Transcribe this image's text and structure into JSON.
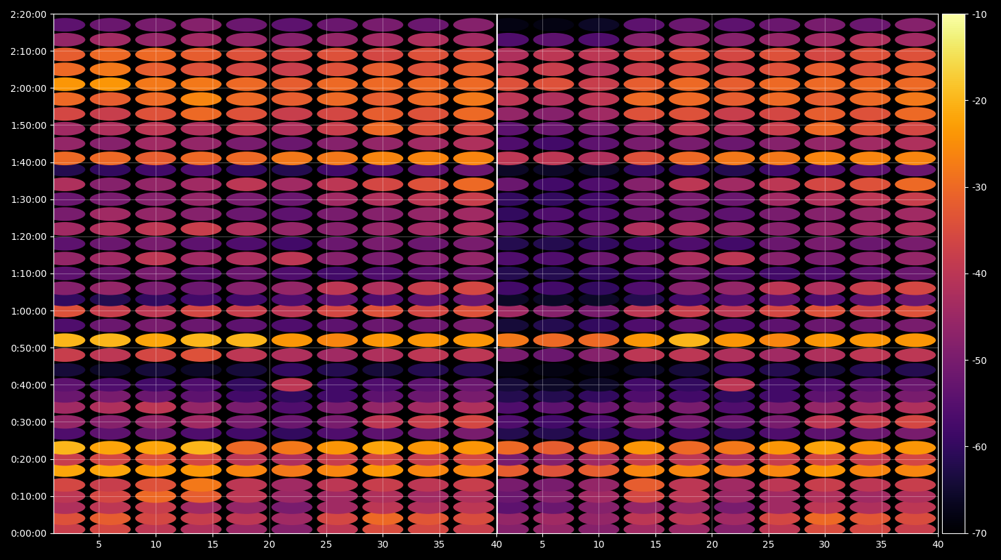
{
  "chart_data": {
    "type": "heatmap",
    "x": [
      2,
      6,
      10,
      14,
      18,
      22,
      26,
      30,
      34,
      38
    ],
    "y": [
      60,
      240,
      420,
      600,
      780,
      1020,
      1200,
      1380,
      1620,
      1800,
      2040,
      2220,
      2400,
      2640,
      2880,
      3120,
      3360,
      3600,
      3780,
      3960,
      4200,
      4440,
      4680,
      4920,
      5160,
      5400,
      5640,
      5880,
      6060,
      6300,
      6540,
      6780,
      7020,
      7260,
      7500,
      7740,
      7980,
      8220
    ],
    "xlim": [
      1,
      40
    ],
    "xticks": [
      5,
      10,
      15,
      20,
      25,
      30,
      35,
      40
    ],
    "ylim": [
      0,
      8400
    ],
    "yticks": [
      {
        "value": 0,
        "label": "0:00:00"
      },
      {
        "value": 600,
        "label": "0:10:00"
      },
      {
        "value": 1200,
        "label": "0:20:00"
      },
      {
        "value": 1800,
        "label": "0:30:00"
      },
      {
        "value": 2400,
        "label": "0:40:00"
      },
      {
        "value": 3000,
        "label": "0:50:00"
      },
      {
        "value": 3600,
        "label": "1:00:00"
      },
      {
        "value": 4200,
        "label": "1:10:00"
      },
      {
        "value": 4800,
        "label": "1:20:00"
      },
      {
        "value": 5400,
        "label": "1:30:00"
      },
      {
        "value": 6000,
        "label": "1:40:00"
      },
      {
        "value": 6600,
        "label": "1:50:00"
      },
      {
        "value": 7200,
        "label": "2:00:00"
      },
      {
        "value": 7800,
        "label": "2:10:00"
      },
      {
        "value": 8400,
        "label": "2:20:00"
      }
    ],
    "grid": true,
    "colorbar": {
      "range": [
        -70,
        -10
      ],
      "ticks": [
        -10,
        -20,
        -30,
        -40,
        -50,
        -60,
        -70
      ]
    },
    "panels": [
      {
        "values": [
          [
            -38,
            -36,
            -40,
            -42,
            -45,
            -48,
            -40,
            -35,
            -36,
            -38
          ],
          [
            -34,
            -32,
            -36,
            -38,
            -40,
            -44,
            -36,
            -30,
            -33,
            -35
          ],
          [
            -42,
            -40,
            -38,
            -44,
            -46,
            -50,
            -44,
            -40,
            -42,
            -40
          ],
          [
            -40,
            -36,
            -30,
            -32,
            -40,
            -45,
            -44,
            -42,
            -44,
            -42
          ],
          [
            -36,
            -38,
            -34,
            -28,
            -40,
            -44,
            -40,
            -38,
            -40,
            -38
          ],
          [
            -22,
            -22,
            -24,
            -24,
            -26,
            -28,
            -26,
            -24,
            -26,
            -26
          ],
          [
            -38,
            -36,
            -34,
            -36,
            -40,
            -42,
            -38,
            -36,
            -38,
            -36
          ],
          [
            -20,
            -22,
            -22,
            -20,
            -30,
            -28,
            -24,
            -22,
            -24,
            -24
          ],
          [
            -56,
            -54,
            -52,
            -56,
            -58,
            -60,
            -56,
            -54,
            -52,
            -50
          ],
          [
            -46,
            -48,
            -46,
            -44,
            -50,
            -52,
            -50,
            -40,
            -38,
            -36
          ],
          [
            -44,
            -42,
            -40,
            -46,
            -50,
            -56,
            -50,
            -46,
            -44,
            -42
          ],
          [
            -52,
            -50,
            -52,
            -54,
            -58,
            -60,
            -58,
            -54,
            -52,
            -50
          ],
          [
            -54,
            -56,
            -58,
            -56,
            -60,
            -40,
            -58,
            -56,
            -54,
            -52
          ],
          [
            -64,
            -66,
            -64,
            -66,
            -64,
            -60,
            -62,
            -64,
            -62,
            -62
          ],
          [
            -38,
            -40,
            -36,
            -34,
            -40,
            -42,
            -44,
            -42,
            -40,
            -40
          ],
          [
            -20,
            -20,
            -22,
            -20,
            -20,
            -24,
            -26,
            -24,
            -24,
            -24
          ],
          [
            -56,
            -52,
            -50,
            -52,
            -54,
            -56,
            -54,
            -52,
            -52,
            -50
          ],
          [
            -34,
            -38,
            -40,
            -36,
            -38,
            -40,
            -36,
            -34,
            -36,
            -34
          ],
          [
            -60,
            -62,
            -60,
            -58,
            -58,
            -56,
            -54,
            -56,
            -54,
            -52
          ],
          [
            -48,
            -46,
            -50,
            -52,
            -48,
            -46,
            -40,
            -42,
            -38,
            -36
          ],
          [
            -54,
            -52,
            -50,
            -54,
            -52,
            -56,
            -58,
            -56,
            -54,
            -52
          ],
          [
            -46,
            -44,
            -40,
            -44,
            -42,
            -40,
            -48,
            -50,
            -48,
            -46
          ],
          [
            -54,
            -52,
            -50,
            -54,
            -56,
            -58,
            -52,
            -50,
            -52,
            -50
          ],
          [
            -44,
            -42,
            -40,
            -38,
            -42,
            -46,
            -48,
            -46,
            -44,
            -42
          ],
          [
            -50,
            -44,
            -46,
            -48,
            -52,
            -54,
            -50,
            -48,
            -46,
            -44
          ],
          [
            -52,
            -50,
            -48,
            -46,
            -50,
            -52,
            -44,
            -42,
            -40,
            -38
          ],
          [
            -42,
            -48,
            -46,
            -44,
            -40,
            -44,
            -40,
            -36,
            -34,
            -30
          ],
          [
            -62,
            -60,
            -58,
            -56,
            -60,
            -62,
            -58,
            -56,
            -54,
            -52
          ],
          [
            -30,
            -30,
            -32,
            -30,
            -30,
            -28,
            -28,
            -26,
            -26,
            -26
          ],
          [
            -46,
            -48,
            -44,
            -46,
            -50,
            -52,
            -48,
            -46,
            -44,
            -42
          ],
          [
            -44,
            -42,
            -40,
            -42,
            -40,
            -42,
            -38,
            -30,
            -34,
            -36
          ],
          [
            -36,
            -38,
            -34,
            -30,
            -34,
            -38,
            -36,
            -32,
            -34,
            -30
          ],
          [
            -30,
            -32,
            -30,
            -26,
            -30,
            -32,
            -30,
            -32,
            -30,
            -28
          ],
          [
            -24,
            -24,
            -28,
            -28,
            -30,
            -32,
            -30,
            -30,
            -30,
            -30
          ],
          [
            -30,
            -28,
            -32,
            -34,
            -36,
            -38,
            -34,
            -32,
            -34,
            -32
          ],
          [
            -32,
            -30,
            -30,
            -32,
            -34,
            -36,
            -34,
            -36,
            -34,
            -34
          ],
          [
            -46,
            -44,
            -46,
            -44,
            -46,
            -48,
            -46,
            -44,
            -42,
            -44
          ],
          [
            -54,
            -52,
            -50,
            -48,
            -52,
            -54,
            -52,
            -50,
            -52,
            -48
          ]
        ]
      },
      {
        "values": [
          [
            -48,
            -46,
            -48,
            -44,
            -45,
            -48,
            -40,
            -35,
            -36,
            -38
          ],
          [
            -46,
            -44,
            -46,
            -40,
            -40,
            -44,
            -36,
            -30,
            -33,
            -35
          ],
          [
            -54,
            -52,
            -48,
            -46,
            -46,
            -50,
            -44,
            -40,
            -42,
            -40
          ],
          [
            -52,
            -48,
            -44,
            -36,
            -40,
            -45,
            -44,
            -42,
            -44,
            -42
          ],
          [
            -50,
            -50,
            -46,
            -32,
            -40,
            -44,
            -40,
            -38,
            -40,
            -38
          ],
          [
            -32,
            -34,
            -32,
            -26,
            -26,
            -28,
            -26,
            -24,
            -26,
            -26
          ],
          [
            -50,
            -48,
            -44,
            -38,
            -40,
            -42,
            -38,
            -36,
            -38,
            -36
          ],
          [
            -30,
            -32,
            -30,
            -24,
            -30,
            -28,
            -24,
            -22,
            -24,
            -24
          ],
          [
            -62,
            -62,
            -60,
            -58,
            -58,
            -60,
            -56,
            -54,
            -52,
            -50
          ],
          [
            -56,
            -58,
            -56,
            -48,
            -50,
            -52,
            -50,
            -40,
            -38,
            -36
          ],
          [
            -56,
            -54,
            -52,
            -50,
            -50,
            -56,
            -50,
            -46,
            -44,
            -42
          ],
          [
            -62,
            -62,
            -60,
            -56,
            -58,
            -60,
            -58,
            -54,
            -52,
            -50
          ],
          [
            -64,
            -66,
            -66,
            -58,
            -60,
            -40,
            -58,
            -56,
            -54,
            -52
          ],
          [
            -68,
            -68,
            -68,
            -66,
            -64,
            -60,
            -62,
            -64,
            -62,
            -62
          ],
          [
            -50,
            -52,
            -48,
            -40,
            -40,
            -42,
            -44,
            -42,
            -40,
            -40
          ],
          [
            -28,
            -30,
            -30,
            -24,
            -20,
            -24,
            -26,
            -24,
            -24,
            -24
          ],
          [
            -64,
            -62,
            -60,
            -56,
            -54,
            -56,
            -54,
            -52,
            -52,
            -50
          ],
          [
            -44,
            -48,
            -50,
            -40,
            -38,
            -40,
            -36,
            -34,
            -36,
            -34
          ],
          [
            -66,
            -66,
            -66,
            -62,
            -58,
            -56,
            -54,
            -56,
            -54,
            -52
          ],
          [
            -58,
            -58,
            -60,
            -56,
            -48,
            -46,
            -40,
            -42,
            -38,
            -36
          ],
          [
            -62,
            -62,
            -60,
            -58,
            -52,
            -56,
            -58,
            -56,
            -54,
            -52
          ],
          [
            -56,
            -56,
            -52,
            -48,
            -42,
            -40,
            -48,
            -50,
            -48,
            -46
          ],
          [
            -62,
            -62,
            -60,
            -58,
            -56,
            -58,
            -52,
            -50,
            -52,
            -50
          ],
          [
            -54,
            -54,
            -52,
            -42,
            -42,
            -46,
            -48,
            -46,
            -44,
            -42
          ],
          [
            -60,
            -56,
            -56,
            -52,
            -52,
            -54,
            -50,
            -48,
            -46,
            -44
          ],
          [
            -60,
            -60,
            -58,
            -50,
            -50,
            -52,
            -44,
            -42,
            -40,
            -38
          ],
          [
            -52,
            -58,
            -56,
            -48,
            -40,
            -44,
            -40,
            -36,
            -34,
            -30
          ],
          [
            -66,
            -66,
            -66,
            -60,
            -60,
            -62,
            -58,
            -56,
            -54,
            -52
          ],
          [
            -40,
            -40,
            -42,
            -34,
            -30,
            -28,
            -28,
            -26,
            -26,
            -26
          ],
          [
            -56,
            -58,
            -54,
            -50,
            -50,
            -52,
            -48,
            -46,
            -44,
            -42
          ],
          [
            -54,
            -52,
            -50,
            -46,
            -40,
            -42,
            -38,
            -30,
            -34,
            -36
          ],
          [
            -46,
            -48,
            -44,
            -34,
            -34,
            -38,
            -36,
            -32,
            -34,
            -30
          ],
          [
            -40,
            -42,
            -40,
            -30,
            -30,
            -32,
            -30,
            -32,
            -30,
            -28
          ],
          [
            -34,
            -34,
            -38,
            -32,
            -30,
            -32,
            -30,
            -30,
            -30,
            -30
          ],
          [
            -40,
            -38,
            -42,
            -38,
            -36,
            -38,
            -34,
            -32,
            -34,
            -32
          ],
          [
            -42,
            -40,
            -40,
            -36,
            -34,
            -36,
            -34,
            -36,
            -34,
            -34
          ],
          [
            -56,
            -54,
            -56,
            -48,
            -46,
            -48,
            -46,
            -44,
            -42,
            -44
          ],
          [
            -68,
            -68,
            -66,
            -54,
            -52,
            -54,
            -52,
            -50,
            -52,
            -48
          ]
        ]
      }
    ]
  }
}
